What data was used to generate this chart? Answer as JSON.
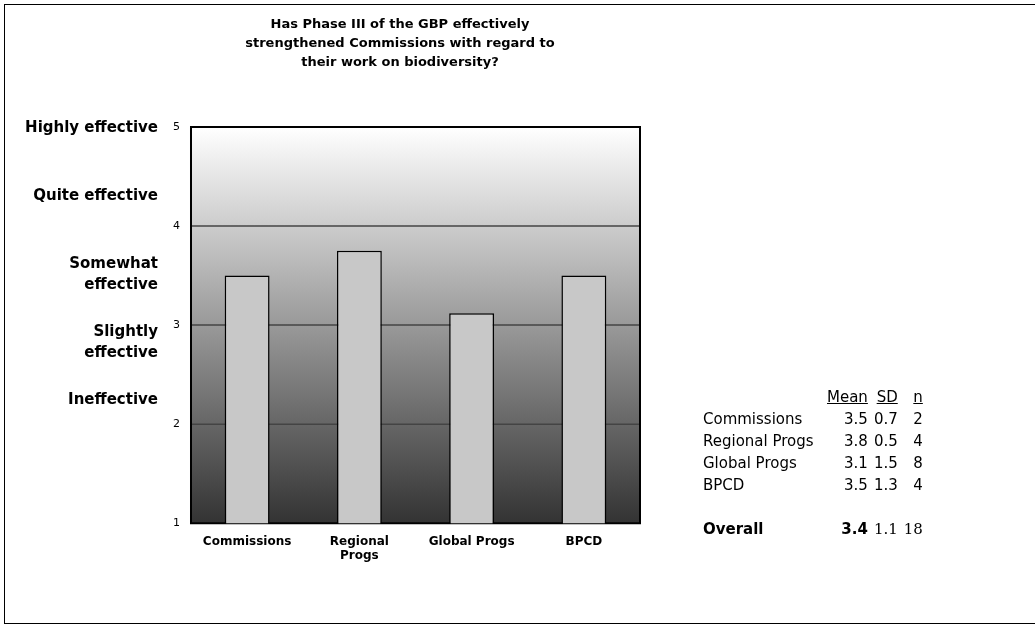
{
  "chart_data": {
    "type": "bar",
    "title": "Has Phase III of the GBP effectively strengthened Commissions with regard to their work on biodiversity?",
    "categories": [
      "Commissions",
      "Regional Progs",
      "Global Progs",
      "BPCD"
    ],
    "values": [
      3.5,
      3.75,
      3.12,
      3.5
    ],
    "color": "#c8c8c8",
    "ylim": [
      1,
      5
    ],
    "yticks": [
      1,
      2,
      3,
      4,
      5
    ],
    "grid": "y",
    "legend": false,
    "annotations": [
      "Highly effective",
      "Quite effective",
      "Somewhat effective",
      "Slightly effective",
      "Ineffective",
      "Mean",
      "SD",
      "n",
      "Commissions",
      "3.5",
      "0.7",
      "2",
      "Regional Progs",
      "3.8",
      "0.5",
      "4",
      "Global Progs",
      "3.1",
      "1.5",
      "8",
      "BPCD",
      "3.5",
      "1.3",
      "4",
      "Overall",
      "3.4",
      "1.1",
      "18"
    ]
  }
}
